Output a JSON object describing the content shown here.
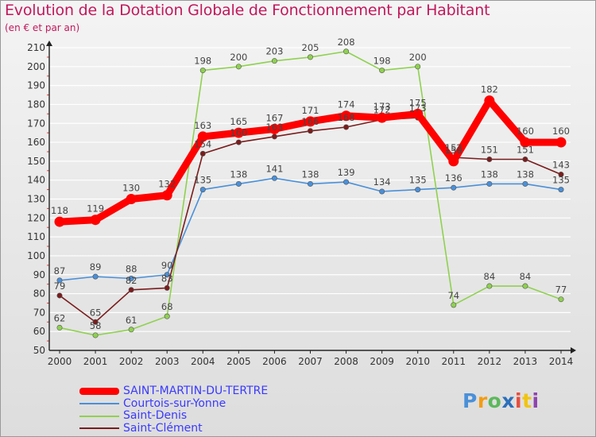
{
  "header": {
    "title": "Evolution de la Dotation Globale de Fonctionnement par Habitant",
    "subtitle": "(en € et par an)"
  },
  "logo": {
    "letters": [
      "P",
      "r",
      "o",
      "x",
      "i",
      "t",
      "i"
    ],
    "colors": [
      "#4a90d9",
      "#f39c12",
      "#5cb85c",
      "#2c6fbb",
      "#e74c3c",
      "#f1c40f",
      "#8e44ad"
    ]
  },
  "colors": {
    "axis": "#222222",
    "grid": "#ffffff",
    "tick_red": "#e53935"
  },
  "chart_data": {
    "type": "line",
    "title": "Evolution de la Dotation Globale de Fonctionnement par Habitant",
    "subtitle": "(en € et par an)",
    "xlabel": "",
    "ylabel": "",
    "ylim": [
      50,
      210
    ],
    "ystep": 10,
    "x": [
      "2000",
      "2001",
      "2002",
      "2003",
      "2004",
      "2005",
      "2006",
      "2007",
      "2008",
      "2009",
      "2010",
      "2011",
      "2012",
      "2013",
      "2014"
    ],
    "legend_position": "bottom-left",
    "series": [
      {
        "name": "Courtois-sur-Yonne",
        "color": "#4a90d9",
        "values": [
          87,
          89,
          88,
          90,
          135,
          138,
          141,
          138,
          139,
          134,
          135,
          136,
          138,
          138,
          135
        ]
      },
      {
        "name": "Saint-Denis",
        "color": "#8fd14f",
        "values": [
          62,
          58,
          61,
          68,
          198,
          200,
          203,
          205,
          208,
          198,
          200,
          74,
          84,
          84,
          77
        ]
      },
      {
        "name": "Saint-Clément",
        "color": "#7b1c1c",
        "values": [
          79,
          65,
          82,
          83,
          154,
          160,
          163,
          166,
          168,
          172,
          173,
          152,
          151,
          151,
          143
        ]
      },
      {
        "name": "SAINT-MARTIN-DU-TERTRE",
        "color": "#ff0000",
        "highlight": true,
        "values": [
          118,
          119,
          130,
          132,
          163,
          165,
          167,
          171,
          174,
          173,
          175,
          150,
          182,
          160,
          160
        ]
      }
    ],
    "legend_order": [
      "SAINT-MARTIN-DU-TERTRE",
      "Courtois-sur-Yonne",
      "Saint-Denis",
      "Saint-Clément"
    ]
  }
}
